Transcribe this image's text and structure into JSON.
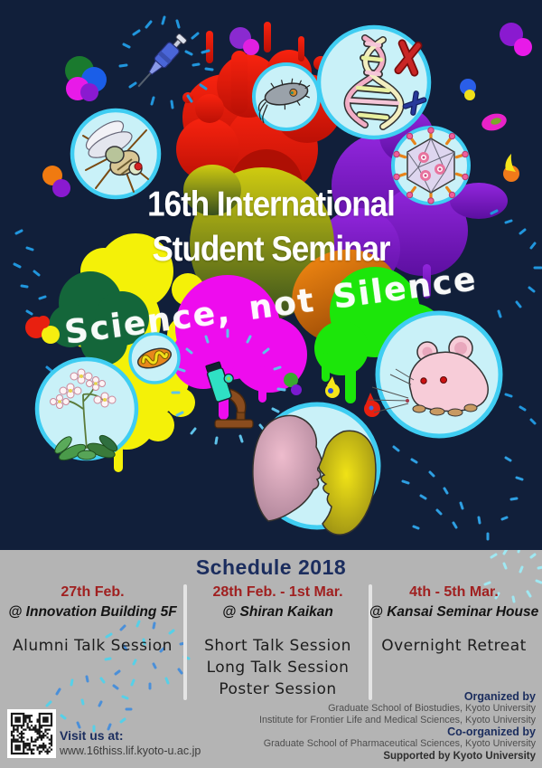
{
  "poster": {
    "title_line1": "16th International",
    "title_line2": "Student Seminar",
    "tagline": "Science, not Silence"
  },
  "schedule": {
    "heading": "Schedule 2018",
    "columns": [
      {
        "date": "27th Feb.",
        "venue": "@ Innovation Building 5F",
        "sessions": [
          "Alumni Talk Session"
        ]
      },
      {
        "date": "28th Feb. - 1st Mar.",
        "venue": "@ Shiran Kaikan",
        "sessions": [
          "Short Talk Session",
          "Long Talk Session",
          "Poster Session"
        ]
      },
      {
        "date": "4th - 5th Mar.",
        "venue": "@ Kansai Seminar House",
        "sessions": [
          "Overnight Retreat"
        ]
      }
    ]
  },
  "footer": {
    "visit_label": "Visit us at:",
    "url": "www.16thiss.lif.kyoto-u.ac.jp",
    "organized_label": "Organized by",
    "organized_lines": [
      "Graduate School of Biostudies, Kyoto University",
      "Institute for Frontier Life and Medical Sciences, Kyoto University"
    ],
    "co_organized_label": "Co-organized by",
    "co_organized_lines": [
      "Graduate School of Pharmaceutical Sciences, Kyoto University"
    ],
    "supported_line": "Supported by Kyoto University"
  },
  "icons": [
    "fruit-fly-icon",
    "bacterium-icon",
    "dna-chromosomes-icon",
    "virus-capsid-icon",
    "mitochondrion-icon",
    "arabidopsis-plant-icon",
    "conversation-faces-icon",
    "lab-mouse-icon",
    "micropipette-icon",
    "microscope-icon",
    "qr-code"
  ],
  "colors": {
    "background_navy": "#111f3a",
    "section_gray": "#b4b4b4",
    "heading_navy": "#1b2d5e",
    "date_red": "#a02020",
    "bubble_fill": "#c9f1f8",
    "bubble_ring": "#3fcdf2",
    "confetti_blue": "#2196dd"
  }
}
